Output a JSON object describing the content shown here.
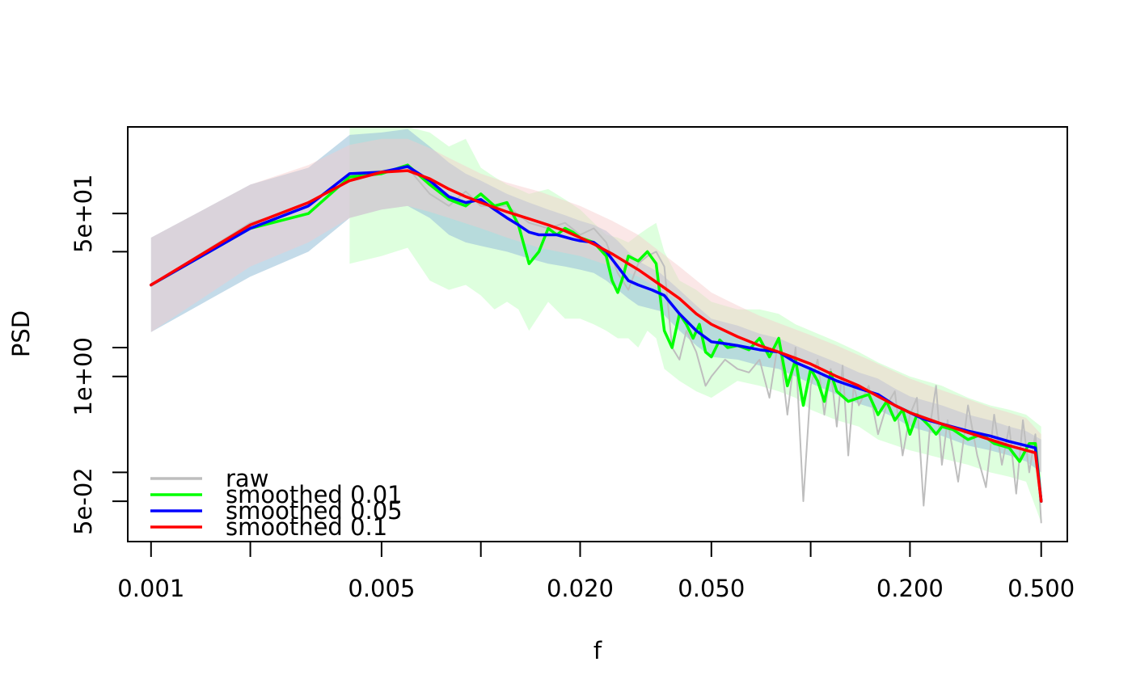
{
  "chart_data": {
    "type": "line",
    "title": "",
    "xlabel": "f",
    "ylabel": "PSD",
    "x_scale": "log",
    "y_scale": "log",
    "xlim": [
      0.00085,
      0.6
    ],
    "ylim": [
      0.019,
      400
    ],
    "x_ticks": [
      0.001,
      0.002,
      0.005,
      0.01,
      0.02,
      0.05,
      0.1,
      0.2,
      0.5
    ],
    "x_tick_labels": [
      "0.001",
      "",
      "0.005",
      "",
      "0.020",
      "0.050",
      "",
      "0.200",
      "0.500"
    ],
    "y_ticks": [
      0.05,
      0.1,
      1,
      2,
      20,
      50
    ],
    "y_tick_labels": [
      "5e-02",
      "",
      "1e+00",
      "",
      "",
      "5e+01"
    ],
    "grid": false,
    "legend_position": "bottom-left",
    "colors": {
      "raw": "#bebebe",
      "smoothed_0_01": "#00ff00",
      "smoothed_0_05": "#0000ff",
      "smoothed_0_1": "#ff0000",
      "band_0_01": "#ccffcc",
      "band_0_05": "#9cc3da",
      "band_0_1": "#f6c9c9"
    },
    "series": [
      {
        "name": "raw",
        "x": [
          0.001,
          0.002,
          0.003,
          0.004,
          0.005,
          0.006,
          0.007,
          0.008,
          0.009,
          0.01,
          0.012,
          0.014,
          0.016,
          0.018,
          0.02,
          0.022,
          0.024,
          0.026,
          0.028,
          0.03,
          0.032,
          0.034,
          0.036,
          0.038,
          0.04,
          0.042,
          0.045,
          0.048,
          0.05,
          0.055,
          0.06,
          0.065,
          0.07,
          0.075,
          0.08,
          0.085,
          0.09,
          0.095,
          0.1,
          0.105,
          0.11,
          0.115,
          0.12,
          0.125,
          0.13,
          0.135,
          0.14,
          0.15,
          0.16,
          0.17,
          0.18,
          0.19,
          0.2,
          0.21,
          0.22,
          0.23,
          0.24,
          0.25,
          0.26,
          0.28,
          0.3,
          0.32,
          0.34,
          0.36,
          0.38,
          0.4,
          0.42,
          0.44,
          0.46,
          0.48,
          0.49,
          0.5
        ],
        "values": [
          9,
          40,
          60,
          130,
          140,
          150,
          80,
          60,
          85,
          60,
          60,
          40,
          35,
          40,
          30,
          35,
          25,
          12,
          8,
          15,
          18,
          20,
          14,
          2,
          1.5,
          3,
          1.8,
          0.8,
          1,
          1.5,
          1.2,
          1.1,
          1.5,
          0.6,
          2.5,
          0.4,
          2,
          0.05,
          0.8,
          1.5,
          0.4,
          1.2,
          0.3,
          1.3,
          0.15,
          0.8,
          0.5,
          0.8,
          0.25,
          0.5,
          0.7,
          0.15,
          0.4,
          0.6,
          0.045,
          0.3,
          0.8,
          0.12,
          0.35,
          0.08,
          0.5,
          0.15,
          0.07,
          0.4,
          0.12,
          0.3,
          0.06,
          0.35,
          0.1,
          0.25,
          0.1,
          0.03
        ]
      },
      {
        "name": "smoothed 0.01",
        "x": [
          0.001,
          0.002,
          0.003,
          0.004,
          0.005,
          0.006,
          0.007,
          0.008,
          0.009,
          0.01,
          0.011,
          0.012,
          0.013,
          0.014,
          0.015,
          0.016,
          0.017,
          0.018,
          0.019,
          0.02,
          0.022,
          0.024,
          0.025,
          0.026,
          0.027,
          0.028,
          0.03,
          0.032,
          0.034,
          0.036,
          0.038,
          0.04,
          0.042,
          0.044,
          0.046,
          0.048,
          0.05,
          0.053,
          0.056,
          0.06,
          0.065,
          0.07,
          0.075,
          0.08,
          0.085,
          0.09,
          0.095,
          0.1,
          0.105,
          0.11,
          0.115,
          0.12,
          0.13,
          0.14,
          0.15,
          0.16,
          0.17,
          0.18,
          0.19,
          0.2,
          0.21,
          0.22,
          0.23,
          0.24,
          0.25,
          0.27,
          0.3,
          0.33,
          0.36,
          0.4,
          0.43,
          0.46,
          0.48,
          0.5
        ],
        "values": [
          9,
          35,
          50,
          120,
          130,
          160,
          100,
          70,
          60,
          80,
          60,
          65,
          38,
          15,
          20,
          35,
          30,
          35,
          32,
          28,
          25,
          18,
          10,
          7.5,
          11,
          18,
          16,
          20,
          15,
          3,
          2,
          4.5,
          3.5,
          2.5,
          3.5,
          1.8,
          1.6,
          2.4,
          2,
          2.1,
          1.9,
          2.5,
          1.6,
          2.5,
          0.8,
          1.5,
          0.5,
          1.2,
          0.9,
          0.55,
          1.1,
          0.7,
          0.55,
          0.6,
          0.65,
          0.4,
          0.55,
          0.35,
          0.45,
          0.25,
          0.4,
          0.35,
          0.3,
          0.25,
          0.3,
          0.28,
          0.22,
          0.25,
          0.2,
          0.18,
          0.13,
          0.2,
          0.2,
          0.05
        ]
      },
      {
        "name": "smoothed 0.05",
        "x": [
          0.001,
          0.002,
          0.003,
          0.004,
          0.005,
          0.006,
          0.007,
          0.008,
          0.009,
          0.01,
          0.011,
          0.012,
          0.013,
          0.014,
          0.015,
          0.017,
          0.019,
          0.02,
          0.022,
          0.024,
          0.026,
          0.028,
          0.03,
          0.033,
          0.036,
          0.04,
          0.045,
          0.05,
          0.055,
          0.06,
          0.07,
          0.08,
          0.09,
          0.1,
          0.12,
          0.14,
          0.16,
          0.18,
          0.2,
          0.22,
          0.25,
          0.3,
          0.35,
          0.4,
          0.45,
          0.48,
          0.5
        ],
        "values": [
          9,
          35,
          60,
          130,
          135,
          155,
          110,
          75,
          65,
          70,
          55,
          45,
          38,
          32,
          30,
          30,
          27,
          26,
          25,
          20,
          14,
          10,
          9,
          8,
          7,
          4.5,
          3,
          2.3,
          2.2,
          2.1,
          1.9,
          1.8,
          1.4,
          1.2,
          0.9,
          0.75,
          0.65,
          0.5,
          0.42,
          0.36,
          0.32,
          0.27,
          0.24,
          0.21,
          0.19,
          0.18,
          0.05
        ]
      },
      {
        "name": "smoothed 0.1",
        "x": [
          0.001,
          0.002,
          0.003,
          0.004,
          0.005,
          0.006,
          0.007,
          0.008,
          0.009,
          0.01,
          0.012,
          0.014,
          0.016,
          0.018,
          0.02,
          0.022,
          0.025,
          0.028,
          0.03,
          0.035,
          0.04,
          0.045,
          0.05,
          0.06,
          0.07,
          0.08,
          0.09,
          0.1,
          0.12,
          0.14,
          0.16,
          0.18,
          0.2,
          0.25,
          0.3,
          0.35,
          0.4,
          0.45,
          0.48,
          0.5
        ],
        "values": [
          9,
          38,
          65,
          110,
          135,
          140,
          115,
          90,
          75,
          65,
          52,
          44,
          38,
          33,
          28,
          24,
          19,
          15,
          13,
          9,
          6.5,
          4.5,
          3.5,
          2.6,
          2.1,
          1.8,
          1.55,
          1.35,
          1,
          0.8,
          0.62,
          0.5,
          0.42,
          0.32,
          0.26,
          0.22,
          0.19,
          0.17,
          0.16,
          0.05
        ]
      }
    ],
    "bands": [
      {
        "for": "smoothed 0.01",
        "x": [
          0.004,
          0.005,
          0.006,
          0.007,
          0.008,
          0.009,
          0.01,
          0.011,
          0.012,
          0.013,
          0.014,
          0.016,
          0.018,
          0.02,
          0.022,
          0.024,
          0.026,
          0.028,
          0.03,
          0.032,
          0.034,
          0.036,
          0.04,
          0.045,
          0.05,
          0.06,
          0.07,
          0.08,
          0.09,
          0.1,
          0.12,
          0.14,
          0.16,
          0.2,
          0.25,
          0.3,
          0.35,
          0.4,
          0.45,
          0.5
        ],
        "upper": [
          400,
          400,
          400,
          350,
          250,
          300,
          150,
          120,
          100,
          90,
          80,
          90,
          70,
          55,
          40,
          30,
          28,
          25,
          30,
          35,
          40,
          20,
          10,
          8,
          6,
          5,
          5,
          4.5,
          3.5,
          3,
          2.3,
          1.8,
          1.4,
          1,
          0.8,
          0.6,
          0.5,
          0.45,
          0.4,
          0.3
        ],
        "lower": [
          15,
          18,
          22,
          10,
          8,
          9,
          7,
          5,
          6,
          5,
          3,
          6,
          4,
          4,
          3.5,
          3,
          2.5,
          2.5,
          2,
          3,
          2.5,
          1.2,
          0.9,
          0.7,
          0.6,
          0.9,
          0.8,
          0.7,
          0.6,
          0.45,
          0.35,
          0.3,
          0.22,
          0.17,
          0.14,
          0.12,
          0.1,
          0.09,
          0.08,
          0.03
        ]
      },
      {
        "for": "smoothed 0.05",
        "x": [
          0.001,
          0.002,
          0.003,
          0.004,
          0.005,
          0.006,
          0.007,
          0.008,
          0.009,
          0.01,
          0.012,
          0.014,
          0.016,
          0.018,
          0.02,
          0.022,
          0.024,
          0.026,
          0.028,
          0.03,
          0.035,
          0.04,
          0.045,
          0.05,
          0.06,
          0.07,
          0.08,
          0.09,
          0.1,
          0.12,
          0.14,
          0.16,
          0.18,
          0.2,
          0.25,
          0.3,
          0.35,
          0.4,
          0.45,
          0.5
        ],
        "upper": [
          28,
          100,
          150,
          330,
          350,
          380,
          250,
          170,
          130,
          110,
          80,
          65,
          55,
          48,
          42,
          38,
          33,
          26,
          20,
          16,
          12,
          8,
          5.5,
          4,
          3.4,
          2.8,
          2.5,
          2.1,
          1.8,
          1.4,
          1.1,
          0.95,
          0.75,
          0.62,
          0.5,
          0.4,
          0.35,
          0.3,
          0.27,
          0.22
        ],
        "lower": [
          2.9,
          11,
          20,
          45,
          55,
          60,
          45,
          30,
          25,
          23,
          20,
          17,
          15,
          14,
          13,
          12,
          10,
          8,
          6.5,
          5.5,
          4.8,
          3,
          2.1,
          1.6,
          1.5,
          1.3,
          1.2,
          1,
          0.85,
          0.65,
          0.52,
          0.45,
          0.37,
          0.3,
          0.24,
          0.19,
          0.17,
          0.15,
          0.13,
          0.1
        ]
      },
      {
        "for": "smoothed 0.1",
        "x": [
          0.001,
          0.002,
          0.003,
          0.004,
          0.005,
          0.006,
          0.007,
          0.008,
          0.01,
          0.012,
          0.015,
          0.02,
          0.025,
          0.03,
          0.04,
          0.05,
          0.06,
          0.07,
          0.08,
          0.1,
          0.12,
          0.15,
          0.2,
          0.25,
          0.3,
          0.35,
          0.4,
          0.45,
          0.5
        ],
        "upper": [
          28,
          100,
          160,
          260,
          300,
          300,
          240,
          190,
          130,
          105,
          85,
          60,
          42,
          30,
          14,
          7.5,
          5.5,
          4.3,
          3.6,
          2.7,
          2.1,
          1.5,
          0.95,
          0.72,
          0.58,
          0.48,
          0.42,
          0.37,
          0.25
        ],
        "lower": [
          2.9,
          14,
          25,
          45,
          55,
          60,
          52,
          45,
          35,
          28,
          22,
          18,
          14,
          11,
          6,
          3.5,
          2.6,
          2,
          1.7,
          1.2,
          0.9,
          0.65,
          0.45,
          0.33,
          0.26,
          0.22,
          0.19,
          0.17,
          0.1
        ]
      }
    ]
  }
}
